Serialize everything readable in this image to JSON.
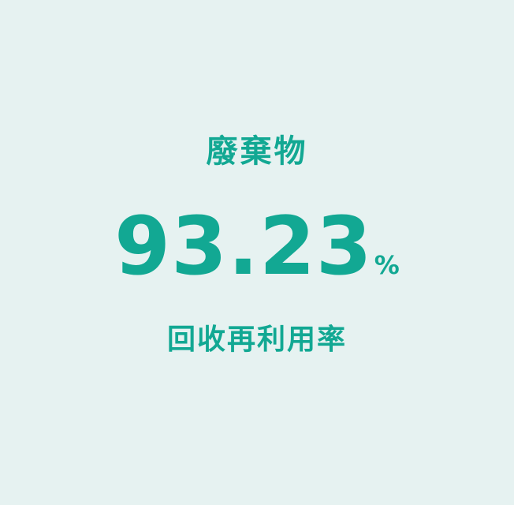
{
  "metric": {
    "title": "廢棄物",
    "value": "93.23",
    "unit": "%",
    "label": "回收再利用率",
    "accent_color": "#12a893",
    "background_color": "#e6f2f1"
  }
}
